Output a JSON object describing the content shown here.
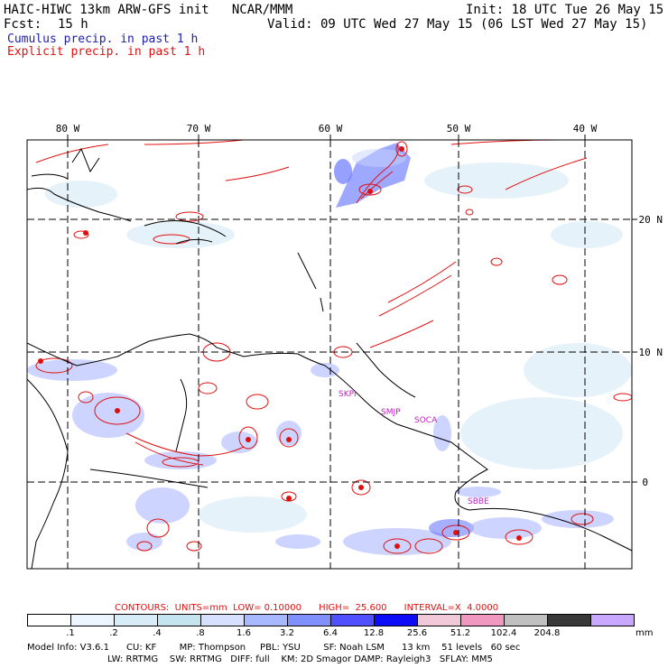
{
  "header": {
    "title": "HAIC-HIWC 13km ARW-GFS init   NCAR/MMM",
    "init": "Init: 18 UTC Tue 26 May 15",
    "fcst_label": "Fcst:",
    "fcst_value": "15 h",
    "valid": "Valid: 09 UTC Wed 27 May 15 (06 LST Wed 27 May 15)"
  },
  "legend": {
    "cumulus": "Cumulus precip. in past 1 h",
    "explicit": "Explicit precip. in past 1 h"
  },
  "axes": {
    "lon_labels": [
      "80 W",
      "70 W",
      "60 W",
      "50 W",
      "40 W"
    ],
    "lat_labels": [
      "20 N",
      "10 N",
      "0"
    ]
  },
  "stations": [
    "SKPI",
    "SMJP",
    "SOCA",
    "SBBE"
  ],
  "contours": {
    "prefix": "CONTOURS:",
    "units": "UNITS=mm",
    "low": "LOW= 0.10000",
    "high": "HIGH=  25.600",
    "interval": "INTERVAL=X  4.0000"
  },
  "colorbar": {
    "colors": [
      "#ffffff",
      "#ecf4ff",
      "#d8ecf8",
      "#c4e4f0",
      "#d8e0ff",
      "#a8b8ff",
      "#8090ff",
      "#5050ff",
      "#0c0cf8",
      "#f0c8d8",
      "#f098c0",
      "#c0c0c0",
      "#383838",
      "#c8a8ff"
    ],
    "labels": [
      ".1",
      ".2",
      ".4",
      ".8",
      "1.6",
      "3.2",
      "6.4",
      "12.8",
      "25.6",
      "51.2",
      "102.4",
      "204.8"
    ],
    "unit": "mm"
  },
  "model_info": {
    "line1": "Model Info: V3.6.1      CU: KF        MP: Thompson     PBL: YSU        SF: Noah LSM      13 km    51 levels   60 sec",
    "line2": "                            LW: RRTMG    SW: RRTMG   DIFF: full    KM: 2D Smagor DAMP: Rayleigh3   SFLAY: MM5"
  },
  "colors": {
    "explicit": "#e01010",
    "cumulus": "#2020b0",
    "station": "#c020c0"
  }
}
